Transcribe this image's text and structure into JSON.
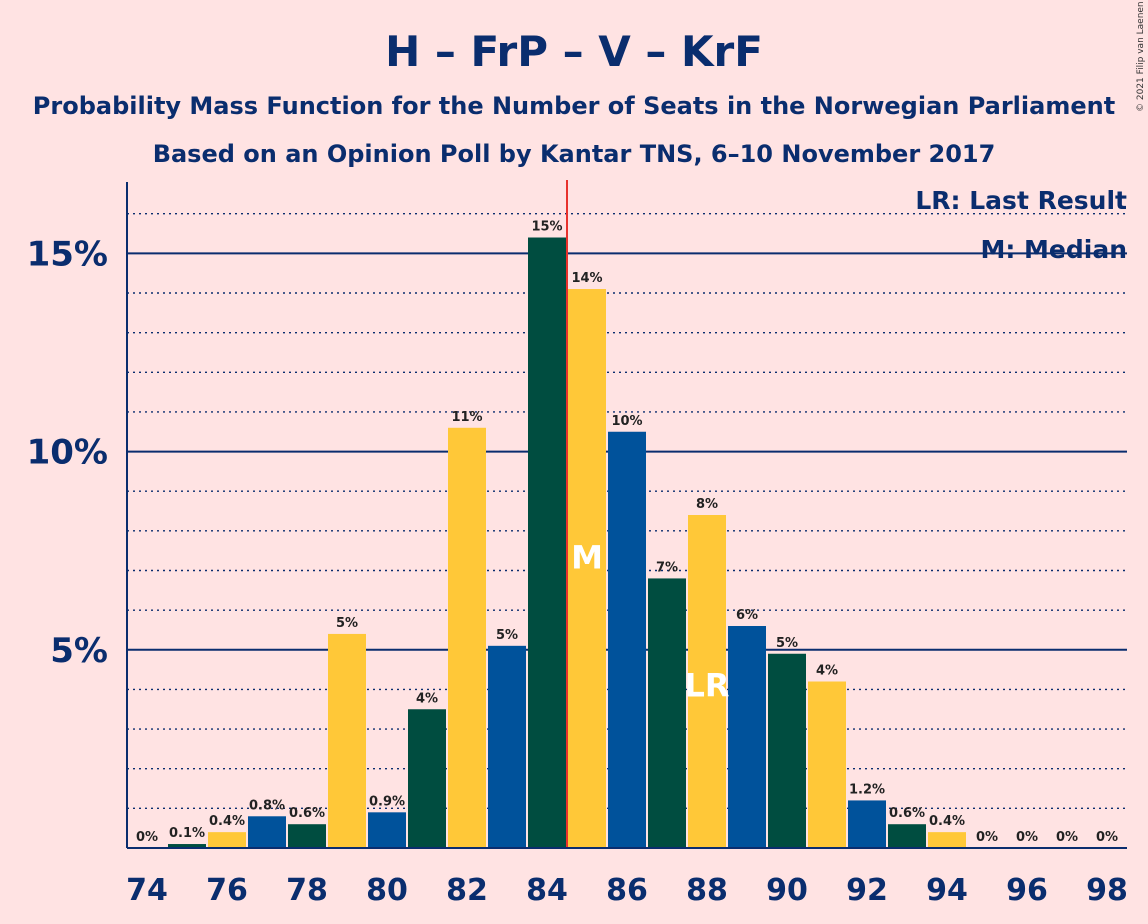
{
  "chart_data": {
    "type": "bar",
    "title": "H – FrP – V – KrF",
    "subtitle": "Probability Mass Function for the Number of Seats in the Norwegian Parliament",
    "subtitle2": "Based on an Opinion Poll by Kantar TNS, 6–10 November 2017",
    "copyright": "© 2021 Filip van Laenen",
    "legend": {
      "lr": "LR: Last Result",
      "m": "M: Median",
      "position": "top-right"
    },
    "x": [
      74,
      75,
      76,
      77,
      78,
      79,
      80,
      81,
      82,
      83,
      84,
      85,
      86,
      87,
      88,
      89,
      90,
      91,
      92,
      93,
      94,
      95,
      96,
      97,
      98
    ],
    "values": [
      0,
      0.1,
      0.4,
      0.8,
      0.6,
      5.4,
      0.9,
      3.5,
      10.6,
      5.1,
      15.4,
      14.1,
      10.5,
      6.8,
      8.4,
      5.6,
      4.9,
      4.2,
      1.2,
      0.6,
      0.4,
      0,
      0,
      0,
      0
    ],
    "labels": [
      "0%",
      "0.1%",
      "0.4%",
      "0.8%",
      "0.6%",
      "5%",
      "0.9%",
      "4%",
      "11%",
      "5%",
      "15%",
      "14%",
      "10%",
      "7%",
      "8%",
      "6%",
      "5%",
      "4%",
      "1.2%",
      "0.6%",
      "0.4%",
      "0%",
      "0%",
      "0%",
      "0%"
    ],
    "xticks": [
      "74",
      "76",
      "78",
      "80",
      "82",
      "84",
      "86",
      "88",
      "90",
      "92",
      "94",
      "96",
      "98"
    ],
    "yticks": [
      "5%",
      "10%",
      "15%"
    ],
    "ylim": [
      0,
      16.8
    ],
    "median_seat": 85,
    "median_marker": "M",
    "last_result_seat": 88,
    "last_result_marker": "LR",
    "majority_line_at": 84.5,
    "colors": [
      "#00529B",
      "#004D40",
      "#FFC838"
    ],
    "majority_color": "#E8322C",
    "background": "#FFE3E3",
    "axis_color": "#0A2D6E"
  }
}
